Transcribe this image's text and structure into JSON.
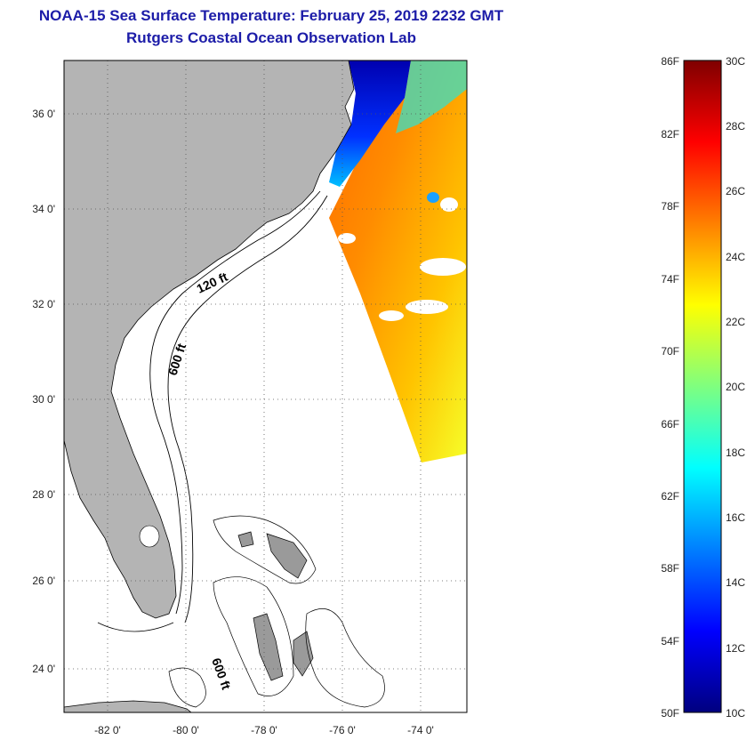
{
  "title": "NOAA-15 Sea Surface Temperature:  February 25, 2019 2232 GMT",
  "subtitle": "Rutgers Coastal Ocean Observation Lab",
  "map": {
    "lon_range": [
      -83,
      -73
    ],
    "lat_range": [
      23,
      37
    ],
    "lon_ticks": [
      "-82 0'",
      "-80 0'",
      "-78 0'",
      "-76 0'",
      "-74 0'"
    ],
    "lat_ticks": [
      "36 0'",
      "34 0'",
      "32 0'",
      "30 0'",
      "28 0'",
      "26 0'",
      "24 0'"
    ],
    "contour_labels": [
      "120 ft",
      "600 ft",
      "600 ft"
    ],
    "colors": {
      "land": "#b4b4b4",
      "ocean_background": "#ffffff",
      "coast": "#000000"
    }
  },
  "colorbar": {
    "fahrenheit_labels": [
      "86F",
      "82F",
      "78F",
      "74F",
      "70F",
      "66F",
      "62F",
      "58F",
      "54F",
      "50F"
    ],
    "celsius_labels": [
      "30C",
      "28C",
      "26C",
      "24C",
      "22C",
      "20C",
      "18C",
      "16C",
      "14C",
      "12C",
      "10C"
    ],
    "range_c": [
      10,
      30
    ],
    "range_f": [
      50,
      86
    ],
    "colors": [
      "#00007f",
      "#0000ff",
      "#007fff",
      "#00ffff",
      "#7fff7f",
      "#ffff00",
      "#ff7f00",
      "#ff0000",
      "#7f0000"
    ]
  }
}
